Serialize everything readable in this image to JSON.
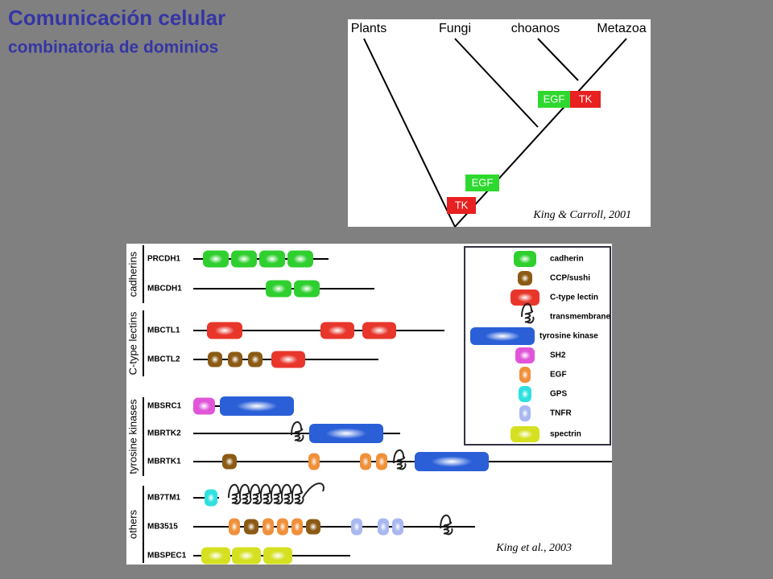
{
  "header": {
    "title": "Comunicación celular",
    "subtitle": "combinatoria de dominios"
  },
  "tree": {
    "taxa": [
      "Plants",
      "Fungi",
      "choanos",
      "Metazoa"
    ],
    "domains": [
      "EGF",
      "TK",
      "EGF",
      "TK"
    ],
    "citation": "King & Carroll, 2001"
  },
  "domains": {
    "groups": [
      "cadherins",
      "C-type lectins",
      "tyrosine kinases",
      "others"
    ],
    "proteins": [
      "PRCDH1",
      "MBCDH1",
      "MBCTL1",
      "MBCTL2",
      "MBSRC1",
      "MBRTK2",
      "MBRTK1",
      "MB7TM1",
      "MB3515",
      "MBSPEC1"
    ],
    "legend": [
      "cadherin",
      "CCP/sushi",
      "C-type lectin",
      "transmembrane",
      "tyrosine kinase",
      "SH2",
      "EGF",
      "GPS",
      "TNFR",
      "spectrin"
    ],
    "citation": "King et al., 2003"
  }
}
